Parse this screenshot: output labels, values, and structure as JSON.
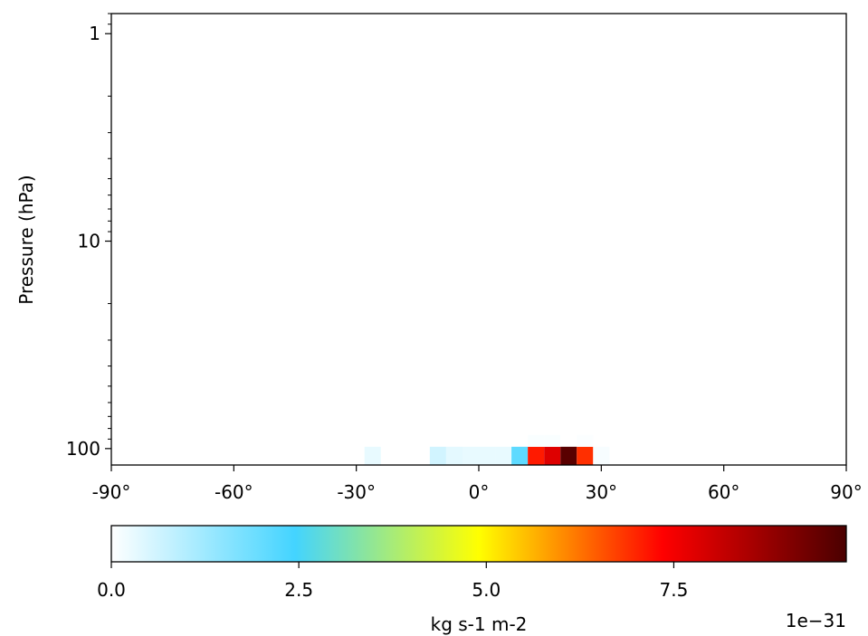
{
  "chart_data": {
    "type": "heatmap",
    "title": "",
    "xlabel": "",
    "ylabel": "Pressure (hPa)",
    "x_range": [
      -90,
      90
    ],
    "x_ticks": [
      -90,
      -60,
      -30,
      0,
      30,
      60,
      90
    ],
    "x_tick_labels": [
      "-90°",
      "-60°",
      "-30°",
      "0°",
      "30°",
      "60°",
      "90°"
    ],
    "y_scale": "log",
    "y_inverted": true,
    "y_range": [
      0.8,
      120
    ],
    "y_ticks": [
      1,
      10,
      100
    ],
    "y_tick_labels": [
      "1",
      "10",
      "100"
    ],
    "colormap": [
      "#ffffff",
      "#43d4ff",
      "#ffff00",
      "#ff0000",
      "#4a0000"
    ],
    "colorbar": {
      "range": [
        0,
        9.8
      ],
      "ticks": [
        0,
        2.5,
        5,
        7.5
      ],
      "tick_labels": [
        "0.0",
        "2.5",
        "5.0",
        "7.5"
      ],
      "label": "kg s-1 m-2",
      "offset_label": "1e−31"
    },
    "cell_width_deg": 4,
    "cells": [
      {
        "lat0": -28,
        "lat1": -24,
        "p_top": 98,
        "p_bot": 120,
        "value": 0.3
      },
      {
        "lat0": -12,
        "lat1": -8,
        "p_top": 98,
        "p_bot": 120,
        "value": 0.6
      },
      {
        "lat0": -8,
        "lat1": -4,
        "p_top": 98,
        "p_bot": 120,
        "value": 0.35
      },
      {
        "lat0": -4,
        "lat1": 0,
        "p_top": 98,
        "p_bot": 120,
        "value": 0.3
      },
      {
        "lat0": 0,
        "lat1": 4,
        "p_top": 98,
        "p_bot": 120,
        "value": 0.3
      },
      {
        "lat0": 4,
        "lat1": 8,
        "p_top": 98,
        "p_bot": 120,
        "value": 0.3
      },
      {
        "lat0": 8,
        "lat1": 12,
        "p_top": 98,
        "p_bot": 120,
        "value": 2.1
      },
      {
        "lat0": 12,
        "lat1": 16,
        "p_top": 98,
        "p_bot": 120,
        "value": 7.1
      },
      {
        "lat0": 16,
        "lat1": 20,
        "p_top": 98,
        "p_bot": 120,
        "value": 7.8
      },
      {
        "lat0": 20,
        "lat1": 24,
        "p_top": 98,
        "p_bot": 120,
        "value": 9.6
      },
      {
        "lat0": 24,
        "lat1": 28,
        "p_top": 98,
        "p_bot": 120,
        "value": 6.9
      },
      {
        "lat0": 28,
        "lat1": 32,
        "p_top": 98,
        "p_bot": 120,
        "value": 0.1
      },
      {
        "lat0": 12,
        "lat1": 16,
        "p_top": 86,
        "p_bot": 98,
        "value": 0.08
      },
      {
        "lat0": 16,
        "lat1": 20,
        "p_top": 86,
        "p_bot": 98,
        "value": 0.08
      },
      {
        "lat0": 24,
        "lat1": 28,
        "p_top": 86,
        "p_bot": 98,
        "value": 0.05
      }
    ]
  }
}
